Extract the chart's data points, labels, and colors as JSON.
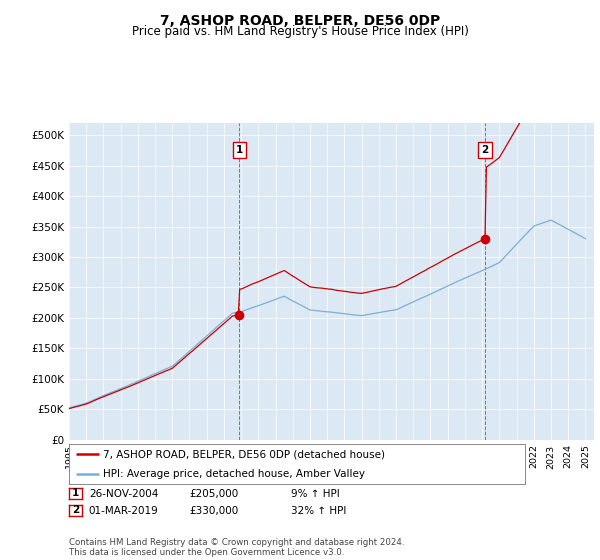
{
  "title": "7, ASHOP ROAD, BELPER, DE56 0DP",
  "subtitle": "Price paid vs. HM Land Registry's House Price Index (HPI)",
  "bg_color": "#dce9f5",
  "hpi_color": "#7bafd4",
  "price_color": "#cc0000",
  "ylim": [
    0,
    520000
  ],
  "yticks": [
    0,
    50000,
    100000,
    150000,
    200000,
    250000,
    300000,
    350000,
    400000,
    450000,
    500000
  ],
  "ytick_labels": [
    "£0",
    "£50K",
    "£100K",
    "£150K",
    "£200K",
    "£250K",
    "£300K",
    "£350K",
    "£400K",
    "£450K",
    "£500K"
  ],
  "sale1_year": 2004.9,
  "sale1_price": 205000,
  "sale2_year": 2019.17,
  "sale2_price": 330000,
  "annotation1": {
    "label": "1",
    "date_str": "26-NOV-2004",
    "price": "£205,000",
    "pct": "9% ↑ HPI"
  },
  "annotation2": {
    "label": "2",
    "date_str": "01-MAR-2019",
    "price": "£330,000",
    "pct": "32% ↑ HPI"
  },
  "legend_line1": "7, ASHOP ROAD, BELPER, DE56 0DP (detached house)",
  "legend_line2": "HPI: Average price, detached house, Amber Valley",
  "footer": "Contains HM Land Registry data © Crown copyright and database right 2024.\nThis data is licensed under the Open Government Licence v3.0."
}
